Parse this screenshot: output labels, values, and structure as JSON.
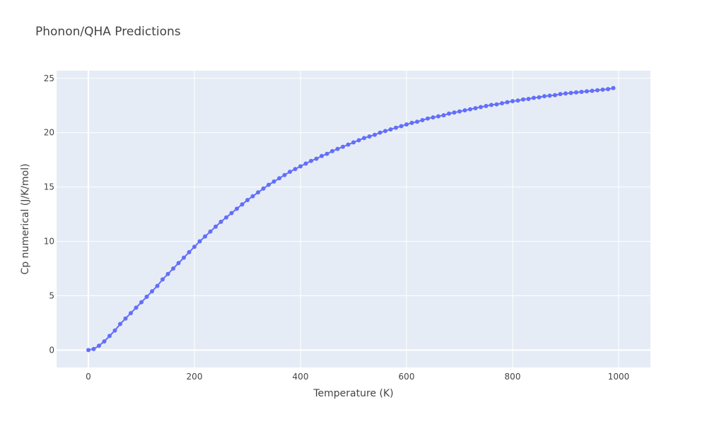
{
  "chart_data": {
    "type": "line",
    "title": "Phonon/QHA Predictions",
    "xlabel": "Temperature (K)",
    "ylabel": "Cp numerical (J/K/mol)",
    "xlim": [
      -60,
      1060
    ],
    "ylim": [
      -1.6,
      25.7
    ],
    "xticks": [
      0,
      200,
      400,
      600,
      800,
      1000
    ],
    "yticks": [
      0,
      5,
      10,
      15,
      20,
      25
    ],
    "grid": true,
    "legend": "none",
    "colors": {
      "plot_bg": "#e5ecf6",
      "series": "#636efa"
    },
    "series": [
      {
        "mode": "lines+markers",
        "x": [
          0,
          10,
          20,
          30,
          40,
          50,
          60,
          70,
          80,
          90,
          100,
          110,
          120,
          130,
          140,
          150,
          160,
          170,
          180,
          190,
          200,
          210,
          220,
          230,
          240,
          250,
          260,
          270,
          280,
          290,
          300,
          310,
          320,
          330,
          340,
          350,
          360,
          370,
          380,
          390,
          400,
          410,
          420,
          430,
          440,
          450,
          460,
          470,
          480,
          490,
          500,
          510,
          520,
          530,
          540,
          550,
          560,
          570,
          580,
          590,
          600,
          610,
          620,
          630,
          640,
          650,
          660,
          670,
          680,
          690,
          700,
          710,
          720,
          730,
          740,
          750,
          760,
          770,
          780,
          790,
          800,
          810,
          820,
          830,
          840,
          850,
          860,
          870,
          880,
          890,
          900,
          910,
          920,
          930,
          940,
          950,
          960,
          970,
          980,
          990
        ],
        "y": [
          0,
          0.1,
          0.4,
          0.8,
          1.3,
          1.8,
          2.4,
          2.9,
          3.4,
          3.9,
          4.4,
          4.9,
          5.4,
          5.9,
          6.5,
          7,
          7.5,
          8,
          8.5,
          9,
          9.5,
          10,
          10.45,
          10.9,
          11.35,
          11.8,
          12.2,
          12.6,
          13,
          13.4,
          13.8,
          14.15,
          14.5,
          14.85,
          15.2,
          15.5,
          15.8,
          16.1,
          16.4,
          16.65,
          16.9,
          17.15,
          17.4,
          17.6,
          17.85,
          18.05,
          18.3,
          18.5,
          18.7,
          18.9,
          19.1,
          19.3,
          19.5,
          19.65,
          19.8,
          20,
          20.15,
          20.3,
          20.45,
          20.6,
          20.75,
          20.9,
          21,
          21.15,
          21.3,
          21.4,
          21.5,
          21.6,
          21.75,
          21.85,
          21.95,
          22.05,
          22.15,
          22.25,
          22.35,
          22.45,
          22.55,
          22.6,
          22.7,
          22.8,
          22.9,
          22.95,
          23.05,
          23.1,
          23.2,
          23.25,
          23.35,
          23.4,
          23.45,
          23.55,
          23.6,
          23.65,
          23.7,
          23.75,
          23.8,
          23.85,
          23.9,
          23.95,
          24,
          24.1
        ]
      }
    ]
  }
}
